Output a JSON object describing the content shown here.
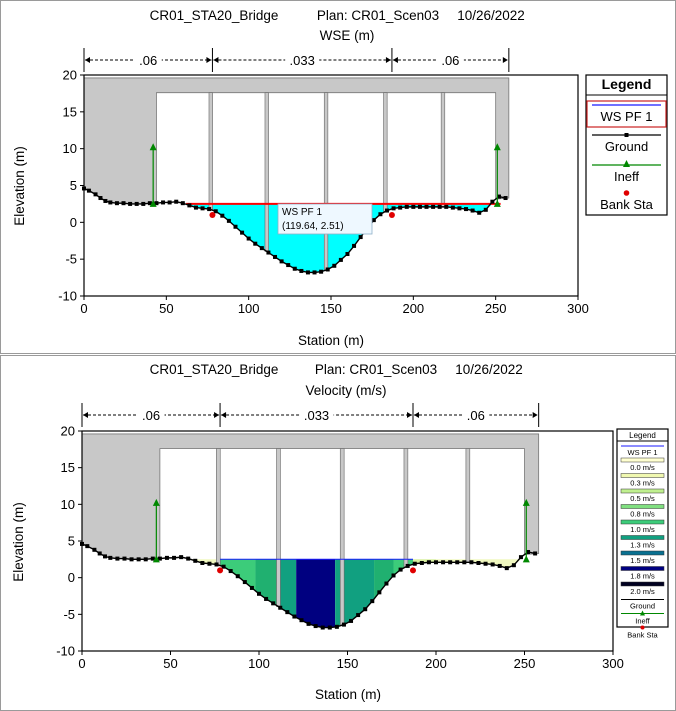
{
  "charts": [
    {
      "header": {
        "plan_name": "CR01_STA20_Bridge",
        "plan_label": "Plan: CR01_Scen03",
        "date": "10/26/2022",
        "subtitle": "WSE (m)"
      },
      "chart_data": {
        "type": "line",
        "title": "WSE (m)",
        "xlabel": "Station (m)",
        "ylabel": "Elevation (m)",
        "xlim": [
          0,
          300
        ],
        "ylim": [
          -10,
          20
        ],
        "xticks": [
          0,
          50,
          100,
          150,
          200,
          250,
          300
        ],
        "yticks": [
          -10,
          -5,
          0,
          5,
          10,
          15,
          20
        ],
        "mannings_n": [
          {
            "label": ".06",
            "from": 0,
            "to": 78
          },
          {
            "label": ".033",
            "from": 78,
            "to": 187
          },
          {
            "label": ".06",
            "from": 187,
            "to": 258
          }
        ],
        "ground": {
          "x": [
            0,
            3,
            7,
            10,
            13,
            16,
            20,
            24,
            28,
            32,
            36,
            40,
            44,
            48,
            52,
            56,
            60,
            64,
            68,
            72,
            76,
            80,
            84,
            88,
            92,
            96,
            100,
            104,
            108,
            112,
            116,
            120,
            124,
            128,
            132,
            136,
            140,
            144,
            148,
            152,
            156,
            160,
            164,
            168,
            172,
            176,
            180,
            184,
            188,
            192,
            196,
            200,
            204,
            208,
            212,
            216,
            220,
            224,
            228,
            232,
            236,
            240,
            244,
            248,
            252,
            256
          ],
          "y": [
            4.6,
            4.3,
            3.8,
            3.3,
            2.9,
            2.7,
            2.6,
            2.6,
            2.5,
            2.5,
            2.5,
            2.6,
            2.6,
            2.7,
            2.7,
            2.8,
            2.6,
            2.3,
            2.0,
            1.9,
            1.8,
            1.5,
            0.9,
            0.2,
            -0.6,
            -1.4,
            -2.2,
            -2.9,
            -3.5,
            -4.1,
            -4.7,
            -5.3,
            -5.8,
            -6.3,
            -6.6,
            -6.8,
            -6.8,
            -6.7,
            -6.4,
            -5.9,
            -5.1,
            -4.3,
            -3.2,
            -2.0,
            -0.8,
            0.3,
            1.1,
            1.6,
            1.9,
            2.0,
            2.1,
            2.1,
            2.1,
            2.1,
            2.1,
            2.1,
            2.1,
            2.0,
            1.9,
            1.8,
            1.6,
            1.3,
            1.7,
            2.8,
            3.5,
            3.3
          ]
        },
        "bridge": {
          "deck_top": 19.6,
          "low_chord": 17.6,
          "left_abutment_x": 44,
          "right_abutment_x": 258,
          "pier_xs": [
            77,
            111,
            147,
            183,
            218
          ],
          "pier_width": 2.2,
          "low_chord_from": 44,
          "low_chord_to": 250
        },
        "ineffective_flow": [
          {
            "x": 42,
            "y_bottom": 2.5,
            "y_top": 10.2
          },
          {
            "x": 251,
            "y_bottom": 2.5,
            "y_top": 10.2
          }
        ],
        "bank_stations": [
          {
            "x": 78,
            "y": 1.0
          },
          {
            "x": 187,
            "y": 1.0
          }
        ],
        "series": [
          {
            "name": "WS PF 1",
            "wse": 2.51,
            "x_from": 62,
            "x_to": 253
          }
        ],
        "tooltip": {
          "title": "WS PF 1",
          "value_text": "(119.64, 2.51)"
        },
        "legend": {
          "title": "Legend",
          "items": [
            {
              "label": "WS PF 1",
              "kind": "line",
              "color": "#1a1aff"
            },
            {
              "label": "Ground",
              "kind": "marker-line",
              "color": "#000000"
            },
            {
              "label": "Ineff",
              "kind": "triangle",
              "color": "#008800"
            },
            {
              "label": "Bank Sta",
              "kind": "dot",
              "color": "#e00000"
            }
          ]
        },
        "colors": {
          "water": "#00ffff",
          "wse_line": "#ff0000",
          "ground_fill": "#c8c8c8",
          "ground_line": "#000000",
          "ineff": "#008800",
          "bank": "#e00000"
        }
      }
    },
    {
      "header": {
        "plan_name": "CR01_STA20_Bridge",
        "plan_label": "Plan: CR01_Scen03",
        "date": "10/26/2022",
        "subtitle": "Velocity (m/s)"
      },
      "chart_data": {
        "type": "area",
        "title": "Velocity (m/s)",
        "xlabel": "Station (m)",
        "ylabel": "Elevation (m)",
        "xlim": [
          0,
          300
        ],
        "ylim": [
          -10,
          20
        ],
        "xticks": [
          0,
          50,
          100,
          150,
          200,
          250,
          300
        ],
        "yticks": [
          -10,
          -5,
          0,
          5,
          10,
          15,
          20
        ],
        "mannings_n": [
          {
            "label": ".06",
            "from": 0,
            "to": 78
          },
          {
            "label": ".033",
            "from": 78,
            "to": 187
          },
          {
            "label": ".06",
            "from": 187,
            "to": 258
          }
        ],
        "ground": {
          "x": [
            0,
            3,
            7,
            10,
            13,
            16,
            20,
            24,
            28,
            32,
            36,
            40,
            44,
            48,
            52,
            56,
            60,
            64,
            68,
            72,
            76,
            80,
            84,
            88,
            92,
            96,
            100,
            104,
            108,
            112,
            116,
            120,
            124,
            128,
            132,
            136,
            140,
            144,
            148,
            152,
            156,
            160,
            164,
            168,
            172,
            176,
            180,
            184,
            188,
            192,
            196,
            200,
            204,
            208,
            212,
            216,
            220,
            224,
            228,
            232,
            236,
            240,
            244,
            248,
            252,
            256
          ],
          "y": [
            4.6,
            4.3,
            3.8,
            3.3,
            2.9,
            2.7,
            2.6,
            2.6,
            2.5,
            2.5,
            2.5,
            2.6,
            2.6,
            2.7,
            2.7,
            2.8,
            2.6,
            2.3,
            2.0,
            1.9,
            1.8,
            1.5,
            0.9,
            0.2,
            -0.6,
            -1.4,
            -2.2,
            -2.9,
            -3.5,
            -4.1,
            -4.7,
            -5.3,
            -5.8,
            -6.3,
            -6.6,
            -6.8,
            -6.8,
            -6.7,
            -6.4,
            -5.9,
            -5.1,
            -4.3,
            -3.2,
            -2.0,
            -0.8,
            0.3,
            1.1,
            1.6,
            1.9,
            2.0,
            2.1,
            2.1,
            2.1,
            2.1,
            2.1,
            2.1,
            2.1,
            2.0,
            1.9,
            1.8,
            1.6,
            1.3,
            1.7,
            2.8,
            3.5,
            3.3
          ]
        },
        "bridge": {
          "deck_top": 19.6,
          "low_chord": 17.6,
          "left_abutment_x": 44,
          "right_abutment_x": 258,
          "pier_xs": [
            77,
            111,
            147,
            183,
            218
          ],
          "pier_width": 2.2,
          "low_chord_from": 44,
          "low_chord_to": 250
        },
        "ineffective_flow": [
          {
            "x": 42,
            "y_bottom": 2.5,
            "y_top": 10.2
          },
          {
            "x": 251,
            "y_bottom": 2.5,
            "y_top": 10.2
          }
        ],
        "bank_stations": [
          {
            "x": 78,
            "y": 1.0
          },
          {
            "x": 187,
            "y": 1.0
          }
        ],
        "wse": 2.51,
        "velocity_bins": [
          {
            "from": 62,
            "to": 78,
            "color": "#f0f8c0"
          },
          {
            "from": 78,
            "to": 98,
            "color": "#3ccc7a"
          },
          {
            "from": 98,
            "to": 111,
            "color": "#20b070"
          },
          {
            "from": 111,
            "to": 121,
            "color": "#11a080"
          },
          {
            "from": 121,
            "to": 143,
            "color": "#000080"
          },
          {
            "from": 143,
            "to": 165,
            "color": "#11a080"
          },
          {
            "from": 165,
            "to": 176,
            "color": "#20b070"
          },
          {
            "from": 176,
            "to": 187,
            "color": "#3ccc7a"
          },
          {
            "from": 187,
            "to": 200,
            "color": "#d8f0a0"
          },
          {
            "from": 200,
            "to": 253,
            "color": "#f0f8c0"
          }
        ],
        "legend": {
          "title": "Legend",
          "items": [
            {
              "label": "WS PF 1",
              "kind": "line",
              "color": "#1a1aff"
            },
            {
              "label": "0.0 m/s",
              "kind": "swatch",
              "color": "#ffffd0"
            },
            {
              "label": "0.3 m/s",
              "kind": "swatch",
              "color": "#f0f8b0"
            },
            {
              "label": "0.5 m/s",
              "kind": "swatch",
              "color": "#c0f090"
            },
            {
              "label": "0.8 m/s",
              "kind": "swatch",
              "color": "#80e080"
            },
            {
              "label": "1.0 m/s",
              "kind": "swatch",
              "color": "#3ccc7a"
            },
            {
              "label": "1.3 m/s",
              "kind": "swatch",
              "color": "#11a080"
            },
            {
              "label": "1.5 m/s",
              "kind": "swatch",
              "color": "#0a7090"
            },
            {
              "label": "1.8 m/s",
              "kind": "swatch",
              "color": "#000080"
            },
            {
              "label": "2.0 m/s",
              "kind": "swatch",
              "color": "#000020"
            },
            {
              "label": "Ground",
              "kind": "marker-line",
              "color": "#000000"
            },
            {
              "label": "Ineff",
              "kind": "triangle",
              "color": "#008800"
            },
            {
              "label": "Bank Sta",
              "kind": "dot",
              "color": "#e00000"
            }
          ]
        },
        "colors": {
          "ground_fill": "#c8c8c8",
          "ground_line": "#000000",
          "ineff": "#008800",
          "bank": "#e00000",
          "wse_line": "#1a1aff"
        }
      }
    }
  ]
}
